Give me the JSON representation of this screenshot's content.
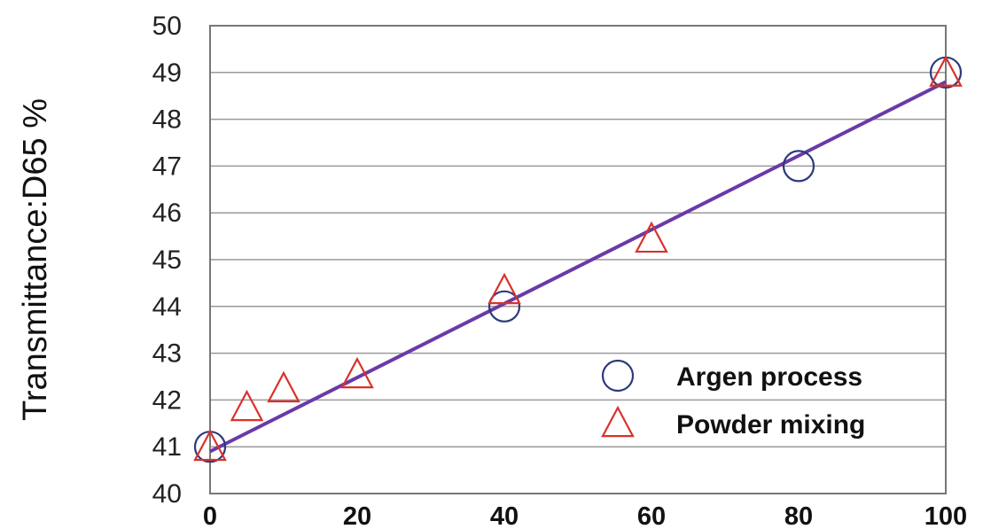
{
  "chart_data": {
    "type": "scatter",
    "title": "",
    "xlabel": "",
    "ylabel": "Transmittance:D65  %",
    "xlim": [
      0,
      100
    ],
    "ylim": [
      40,
      50
    ],
    "x_ticks": [
      "0",
      "20",
      "40",
      "60",
      "80",
      "100"
    ],
    "y_ticks": [
      "40",
      "41",
      "42",
      "43",
      "44",
      "45",
      "46",
      "47",
      "48",
      "49",
      "50"
    ],
    "grid": "horizontal",
    "legend_position": "bottom-right",
    "series": [
      {
        "name": "Argen process",
        "marker": "circle",
        "color": "#2b3a7a",
        "points": [
          [
            0,
            41.0
          ],
          [
            40,
            44.0
          ],
          [
            80,
            47.0
          ],
          [
            100,
            49.0
          ]
        ]
      },
      {
        "name": "Powder mixing",
        "marker": "triangle",
        "color": "#d9312b",
        "points": [
          [
            0,
            40.95
          ],
          [
            5,
            41.8
          ],
          [
            10,
            42.2
          ],
          [
            20,
            42.5
          ],
          [
            40,
            44.3
          ],
          [
            60,
            45.4
          ],
          [
            100,
            48.95
          ]
        ]
      }
    ],
    "trendline": {
      "color": "#6a3aa8",
      "points": [
        [
          0,
          40.9
        ],
        [
          100,
          48.8
        ]
      ]
    }
  }
}
